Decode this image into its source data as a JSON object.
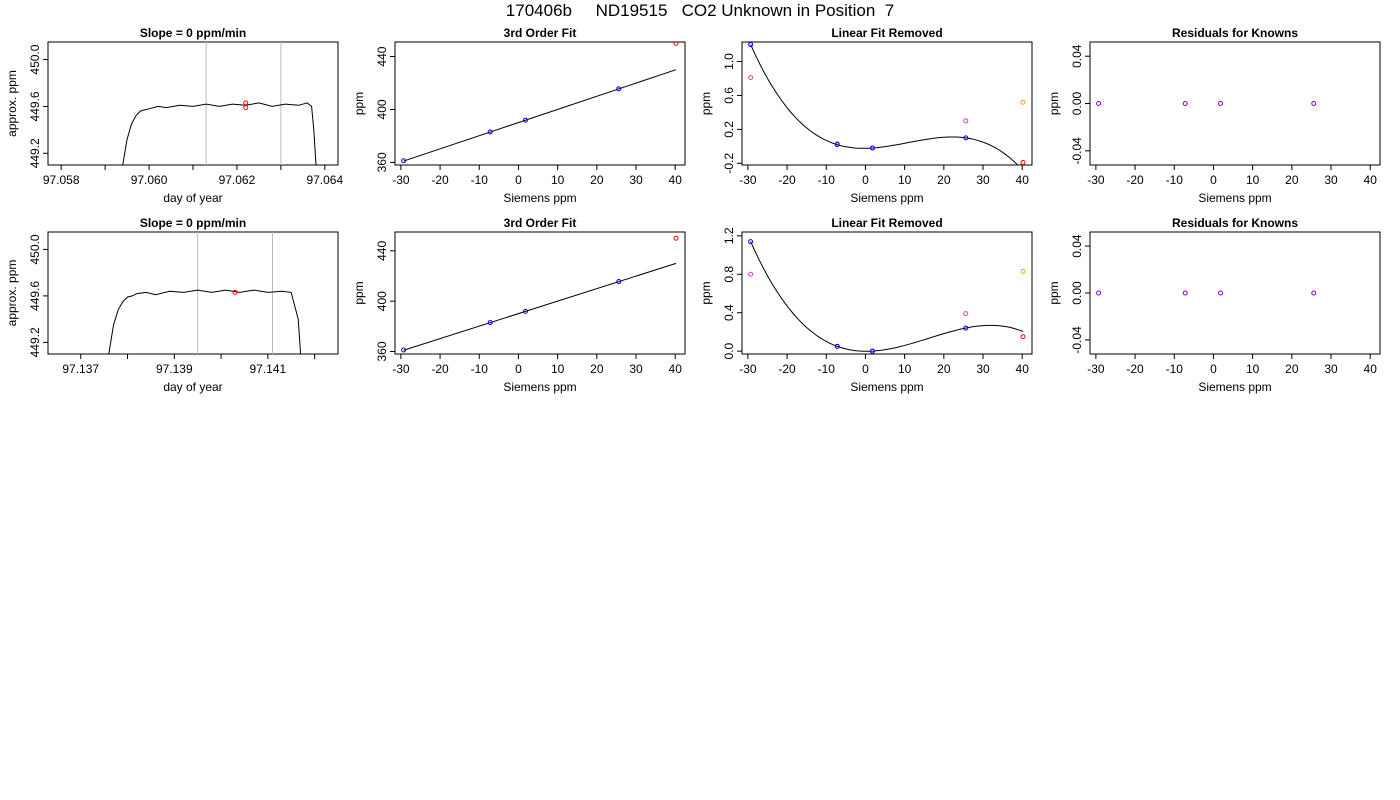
{
  "page_title": "170406b     ND19515   CO2 Unknown in Position  7",
  "colors": {
    "line": "#000000",
    "fit_point": "#0000ff",
    "unknown_point": "#ff0000",
    "removed_point": "#cc44cc",
    "check_point": "#ffa500",
    "residual_point": "#8800cc",
    "window_line": "#bbbbbb"
  },
  "chart_data": [
    {
      "type": "line",
      "title": "Slope =  0  ppm/min",
      "xlabel": "day of year",
      "ylabel": "approx. ppm",
      "xlim": [
        97.0577,
        97.0643
      ],
      "ylim": [
        449.1,
        450.15
      ],
      "xticks": [
        97.058,
        97.059,
        97.06,
        97.061,
        97.062,
        97.063,
        97.064
      ],
      "xticklabels": [
        "97.058",
        "",
        "97.060",
        "",
        "97.062",
        "",
        "97.064"
      ],
      "yticks": [
        449.2,
        449.6,
        450.0
      ],
      "yticklabels": [
        "449.2",
        "449.6",
        "450.0"
      ],
      "series": [
        {
          "x": [
            97.0594,
            97.0595,
            97.0596,
            97.0597,
            97.0598,
            97.0599,
            97.06,
            97.0602,
            97.0604,
            97.0607,
            97.061,
            97.0613,
            97.0616,
            97.0619,
            97.0622,
            97.0625,
            97.0628,
            97.0631,
            97.0634,
            97.0636,
            97.0637,
            97.06375,
            97.0638
          ],
          "y": [
            449.1,
            449.32,
            449.45,
            449.52,
            449.56,
            449.57,
            449.58,
            449.6,
            449.59,
            449.61,
            449.6,
            449.62,
            449.6,
            449.62,
            449.61,
            449.63,
            449.6,
            449.62,
            449.61,
            449.63,
            449.6,
            449.4,
            449.1
          ]
        }
      ],
      "vlines": [
        97.0613,
        97.063
      ],
      "markers": [
        {
          "x": 97.0622,
          "y": 449.63
        },
        {
          "x": 97.0622,
          "y": 449.59
        }
      ]
    },
    {
      "type": "scatter",
      "title": "3rd Order Fit",
      "xlabel": "Siemens ppm",
      "ylabel": "ppm",
      "xlim": [
        -31.5,
        42.5
      ],
      "ylim": [
        358,
        451
      ],
      "xticks": [
        -30,
        -20,
        -10,
        0,
        10,
        20,
        30,
        40
      ],
      "xticklabels": [
        "-30",
        "-20",
        "-10",
        "0",
        "10",
        "20",
        "30",
        "40"
      ],
      "yticks": [
        360,
        400,
        440
      ],
      "yticklabels": [
        "360",
        "400",
        "440"
      ],
      "fit_points": [
        {
          "x": -29.3,
          "y": 361.2
        },
        {
          "x": -7.2,
          "y": 383.0
        },
        {
          "x": 1.8,
          "y": 391.9
        },
        {
          "x": 25.6,
          "y": 415.6
        }
      ],
      "unknown_points": [
        {
          "x": 40.2,
          "y": 450.0
        }
      ],
      "fit": {
        "slope": 0.994,
        "intercept": 390.1,
        "xrange": [
          -29.3,
          40.2
        ]
      }
    },
    {
      "type": "scatter",
      "title": "Linear Fit Removed",
      "xlabel": "Siemens ppm",
      "ylabel": "ppm",
      "xlim": [
        -31.5,
        42.5
      ],
      "ylim": [
        -0.22,
        1.23
      ],
      "xticks": [
        -30,
        -20,
        -10,
        0,
        10,
        20,
        30,
        40
      ],
      "xticklabels": [
        "-30",
        "-20",
        "-10",
        "0",
        "10",
        "20",
        "30",
        "40"
      ],
      "yticks": [
        -0.2,
        0.2,
        0.6,
        1.0
      ],
      "yticklabels": [
        "-0.2",
        "0.2",
        "0.6",
        "1.0"
      ],
      "fit_points": [
        {
          "x": -29.3,
          "y": 1.2
        },
        {
          "x": -7.2,
          "y": 0.02
        },
        {
          "x": 1.8,
          "y": -0.02
        },
        {
          "x": 25.6,
          "y": 0.1
        }
      ],
      "removed_points": [
        {
          "x": -29.3,
          "y": 0.81
        },
        {
          "x": -7.2,
          "y": 0.03
        },
        {
          "x": 1.8,
          "y": -0.02
        },
        {
          "x": 25.6,
          "y": 0.3
        }
      ],
      "check_points": [
        {
          "x": 40.2,
          "y": 0.52
        }
      ],
      "unknown_points": [
        {
          "x": 40.2,
          "y": -0.19
        }
      ],
      "curve": {
        "points_x": [
          -29.3,
          -7.2,
          1.8,
          25.6,
          40.2
        ],
        "points_y": [
          1.2,
          0.02,
          -0.02,
          0.1,
          -0.19
        ]
      }
    },
    {
      "type": "scatter",
      "title": "Residuals for Knowns",
      "xlabel": "Siemens ppm",
      "ylabel": "ppm",
      "xlim": [
        -31.5,
        42.5
      ],
      "ylim": [
        -0.052,
        0.052
      ],
      "xticks": [
        -30,
        -20,
        -10,
        0,
        10,
        20,
        30,
        40
      ],
      "xticklabels": [
        "-30",
        "-20",
        "-10",
        "0",
        "10",
        "20",
        "30",
        "40"
      ],
      "yticks": [
        -0.04,
        0.0,
        0.04
      ],
      "yticklabels": [
        "-0.04",
        "0.00",
        "0.04"
      ],
      "residual_points": [
        {
          "x": -29.3,
          "y": 0.0
        },
        {
          "x": -7.2,
          "y": 0.0
        },
        {
          "x": 1.8,
          "y": 0.0
        },
        {
          "x": 25.6,
          "y": 0.0
        }
      ]
    },
    {
      "type": "line",
      "title": "Slope =  0  ppm/min",
      "xlabel": "day of year",
      "ylabel": "approx. ppm",
      "xlim": [
        97.1363,
        97.1425
      ],
      "ylim": [
        449.1,
        450.15
      ],
      "xticks": [
        97.137,
        97.138,
        97.139,
        97.14,
        97.141,
        97.142
      ],
      "xticklabels": [
        "97.137",
        "",
        "97.139",
        "",
        "97.141",
        ""
      ],
      "yticks": [
        449.2,
        449.6,
        450.0
      ],
      "yticklabels": [
        "449.2",
        "449.6",
        "450.0"
      ],
      "series": [
        {
          "x": [
            97.1376,
            97.1377,
            97.1378,
            97.1379,
            97.138,
            97.1381,
            97.1382,
            97.1384,
            97.1386,
            97.1389,
            97.1392,
            97.1395,
            97.1398,
            97.1401,
            97.1404,
            97.1407,
            97.141,
            97.1413,
            97.1415,
            97.14165,
            97.1417
          ],
          "y": [
            449.1,
            449.35,
            449.48,
            449.55,
            449.59,
            449.6,
            449.62,
            449.63,
            449.61,
            449.64,
            449.63,
            449.65,
            449.63,
            449.65,
            449.63,
            449.65,
            449.63,
            449.64,
            449.63,
            449.4,
            449.1
          ]
        }
      ],
      "vlines": [
        97.1395,
        97.1411
      ],
      "markers": [
        {
          "x": 97.1403,
          "y": 449.63
        }
      ]
    },
    {
      "type": "scatter",
      "title": "3rd Order Fit",
      "xlabel": "Siemens ppm",
      "ylabel": "ppm",
      "xlim": [
        -31.5,
        42.5
      ],
      "ylim": [
        358,
        455
      ],
      "xticks": [
        -30,
        -20,
        -10,
        0,
        10,
        20,
        30,
        40
      ],
      "xticklabels": [
        "-30",
        "-20",
        "-10",
        "0",
        "10",
        "20",
        "30",
        "40"
      ],
      "yticks": [
        360,
        400,
        440
      ],
      "yticklabels": [
        "360",
        "400",
        "440"
      ],
      "fit_points": [
        {
          "x": -29.3,
          "y": 361.2
        },
        {
          "x": -7.2,
          "y": 383.0
        },
        {
          "x": 1.8,
          "y": 391.9
        },
        {
          "x": 25.6,
          "y": 415.6
        }
      ],
      "unknown_points": [
        {
          "x": 40.2,
          "y": 450.0
        }
      ],
      "fit": {
        "slope": 0.994,
        "intercept": 390.1,
        "xrange": [
          -29.3,
          40.2
        ]
      }
    },
    {
      "type": "scatter",
      "title": "Linear Fit Removed",
      "xlabel": "Siemens ppm",
      "ylabel": "ppm",
      "xlim": [
        -31.5,
        42.5
      ],
      "ylim": [
        -0.03,
        1.24
      ],
      "xticks": [
        -30,
        -20,
        -10,
        0,
        10,
        20,
        30,
        40
      ],
      "xticklabels": [
        "-30",
        "-20",
        "-10",
        "0",
        "10",
        "20",
        "30",
        "40"
      ],
      "yticks": [
        0.0,
        0.4,
        0.8,
        1.2
      ],
      "yticklabels": [
        "0.0",
        "0.4",
        "0.8",
        "1.2"
      ],
      "fit_points": [
        {
          "x": -29.3,
          "y": 1.14
        },
        {
          "x": -7.2,
          "y": 0.05
        },
        {
          "x": 1.8,
          "y": 0.0
        },
        {
          "x": 25.6,
          "y": 0.24
        }
      ],
      "removed_points": [
        {
          "x": -29.3,
          "y": 0.8
        },
        {
          "x": -7.2,
          "y": 0.05
        },
        {
          "x": 1.8,
          "y": 0.0
        },
        {
          "x": 25.6,
          "y": 0.39
        }
      ],
      "check_points": [
        {
          "x": 40.2,
          "y": 0.83
        }
      ],
      "unknown_points": [
        {
          "x": 40.2,
          "y": 0.15
        }
      ],
      "curve": {
        "points_x": [
          -29.3,
          -7.2,
          1.8,
          25.6,
          40.2
        ],
        "points_y": [
          1.14,
          0.05,
          0.0,
          0.24,
          0.15
        ]
      }
    },
    {
      "type": "scatter",
      "title": "Residuals for Knowns",
      "xlabel": "Siemens ppm",
      "ylabel": "ppm",
      "xlim": [
        -31.5,
        42.5
      ],
      "ylim": [
        -0.052,
        0.052
      ],
      "xticks": [
        -30,
        -20,
        -10,
        0,
        10,
        20,
        30,
        40
      ],
      "xticklabels": [
        "-30",
        "-20",
        "-10",
        "0",
        "10",
        "20",
        "30",
        "40"
      ],
      "yticks": [
        -0.04,
        0.0,
        0.04
      ],
      "yticklabels": [
        "-0.04",
        "0.00",
        "0.04"
      ],
      "residual_points": [
        {
          "x": -29.3,
          "y": 0.0
        },
        {
          "x": -7.2,
          "y": 0.0
        },
        {
          "x": 1.8,
          "y": 0.0
        },
        {
          "x": 25.6,
          "y": 0.0
        }
      ]
    }
  ]
}
